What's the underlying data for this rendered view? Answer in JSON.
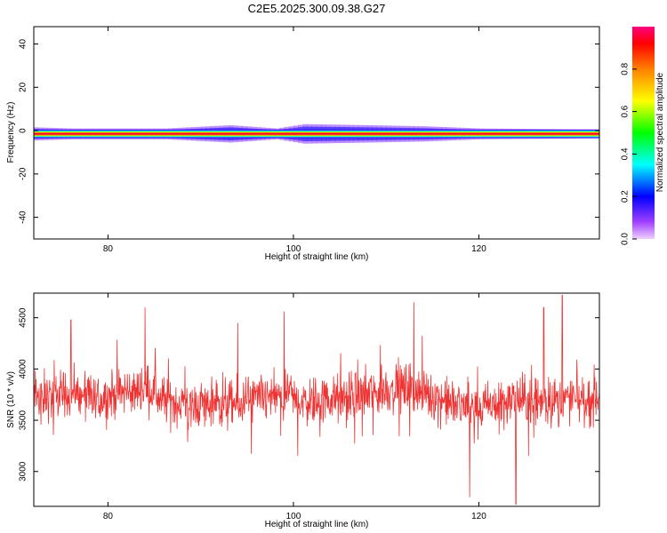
{
  "title": "C2E5.2025.300.09.38.G27",
  "chart_data": [
    {
      "type": "heatmap",
      "xlabel": "Height of straight line (km)",
      "ylabel": "Frequency (Hz)",
      "xlim": [
        72,
        133
      ],
      "ylim": [
        -50,
        48
      ],
      "xticks": [
        80,
        100,
        120
      ],
      "yticks": [
        -40,
        -20,
        0,
        20,
        40
      ],
      "grid": false,
      "colorbar": {
        "label": "Normalized spectral amplitude",
        "range": [
          0,
          1
        ],
        "ticks": [
          0.0,
          0.2,
          0.4,
          0.6,
          0.8
        ],
        "colormap": [
          "#e0a0ff",
          "#8000ff",
          "#0000ff",
          "#00ffff",
          "#00ff00",
          "#ffff00",
          "#ff8000",
          "#ff0000",
          "#ff0080"
        ]
      },
      "band": {
        "center_frequency": -1.5,
        "core": [
          {
            "x": 72,
            "amp": 1.0
          },
          {
            "x": 133,
            "amp": 1.0
          }
        ],
        "spread": [
          {
            "x": 72,
            "halfwidth": 3.0,
            "amp": 0.3
          },
          {
            "x": 76,
            "halfwidth": 2.5,
            "amp": 0.25
          },
          {
            "x": 86,
            "halfwidth": 2.5,
            "amp": 0.2
          },
          {
            "x": 93,
            "halfwidth": 4.0,
            "amp": 0.35
          },
          {
            "x": 98,
            "halfwidth": 2.5,
            "amp": 0.2
          },
          {
            "x": 101,
            "halfwidth": 4.5,
            "amp": 0.3
          },
          {
            "x": 108,
            "halfwidth": 4.0,
            "amp": 0.3
          },
          {
            "x": 114,
            "halfwidth": 3.5,
            "amp": 0.25
          },
          {
            "x": 120,
            "halfwidth": 2.5,
            "amp": 0.15
          },
          {
            "x": 133,
            "halfwidth": 2.0,
            "amp": 0.1
          }
        ]
      }
    },
    {
      "type": "line",
      "xlabel": "Height of straight line (km)",
      "ylabel": "SNR (10 * v/v)",
      "xlim": [
        72,
        133
      ],
      "ylim": [
        2660,
        4740
      ],
      "xticks": [
        80,
        100,
        120
      ],
      "yticks": [
        3000,
        3500,
        4000,
        4500
      ],
      "grid": false,
      "series": [
        {
          "color": "#ee3333",
          "x": [
            72,
            74,
            76,
            78,
            80,
            82,
            84,
            86,
            88,
            90,
            92,
            94,
            96,
            98,
            100,
            102,
            104,
            106,
            108,
            110,
            112,
            114,
            116,
            118,
            120,
            122,
            124,
            126,
            128,
            130,
            132,
            133
          ],
          "y": [
            3750,
            3720,
            3760,
            3700,
            3720,
            3780,
            3820,
            3700,
            3650,
            3660,
            3640,
            3660,
            3700,
            3720,
            3700,
            3690,
            3700,
            3720,
            3760,
            3800,
            3820,
            3780,
            3700,
            3640,
            3620,
            3660,
            3700,
            3680,
            3690,
            3700,
            3690,
            3700
          ],
          "noise_range": [
            -350,
            350
          ],
          "peaks": [
            {
              "x": 76,
              "y": 4480
            },
            {
              "x": 84,
              "y": 4600
            },
            {
              "x": 94,
              "y": 4450
            },
            {
              "x": 99,
              "y": 4560
            },
            {
              "x": 113,
              "y": 4650
            },
            {
              "x": 119,
              "y": 2750
            },
            {
              "x": 124,
              "y": 2680
            },
            {
              "x": 127,
              "y": 4600
            },
            {
              "x": 129,
              "y": 4720
            }
          ]
        }
      ]
    }
  ]
}
